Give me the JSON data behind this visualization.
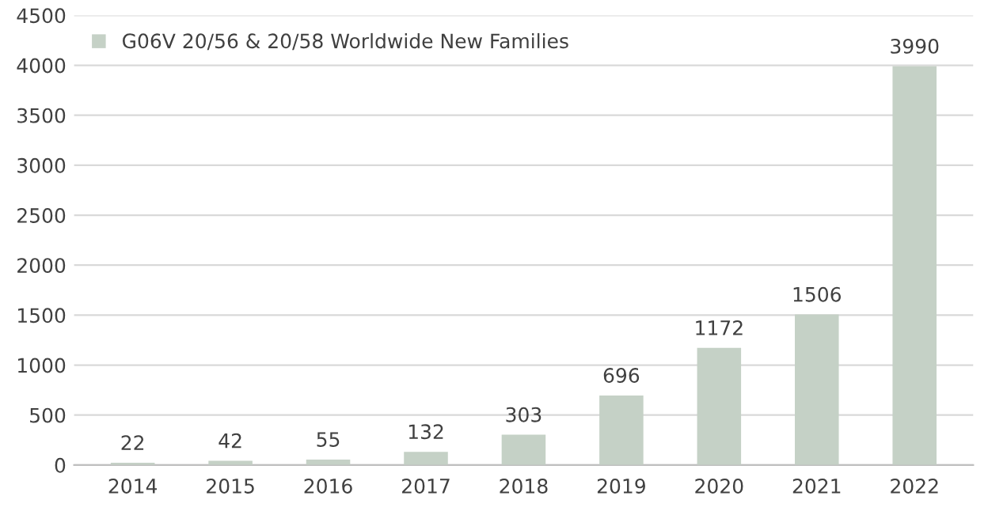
{
  "chart_data": {
    "type": "bar",
    "categories": [
      "2014",
      "2015",
      "2016",
      "2017",
      "2018",
      "2019",
      "2020",
      "2021",
      "2022"
    ],
    "series": [
      {
        "name": "G06V 20/56 & 20/58 Worldwide New Families",
        "color": "#c5d1c6",
        "values": [
          22,
          42,
          55,
          132,
          303,
          696,
          1172,
          1506,
          3990
        ]
      }
    ],
    "ylim": [
      0,
      4500
    ],
    "yticks": [
      0,
      500,
      1000,
      1500,
      2000,
      2500,
      3000,
      3500,
      4000,
      4500
    ],
    "grid": "y",
    "legend": "top left",
    "data_labels": true
  }
}
